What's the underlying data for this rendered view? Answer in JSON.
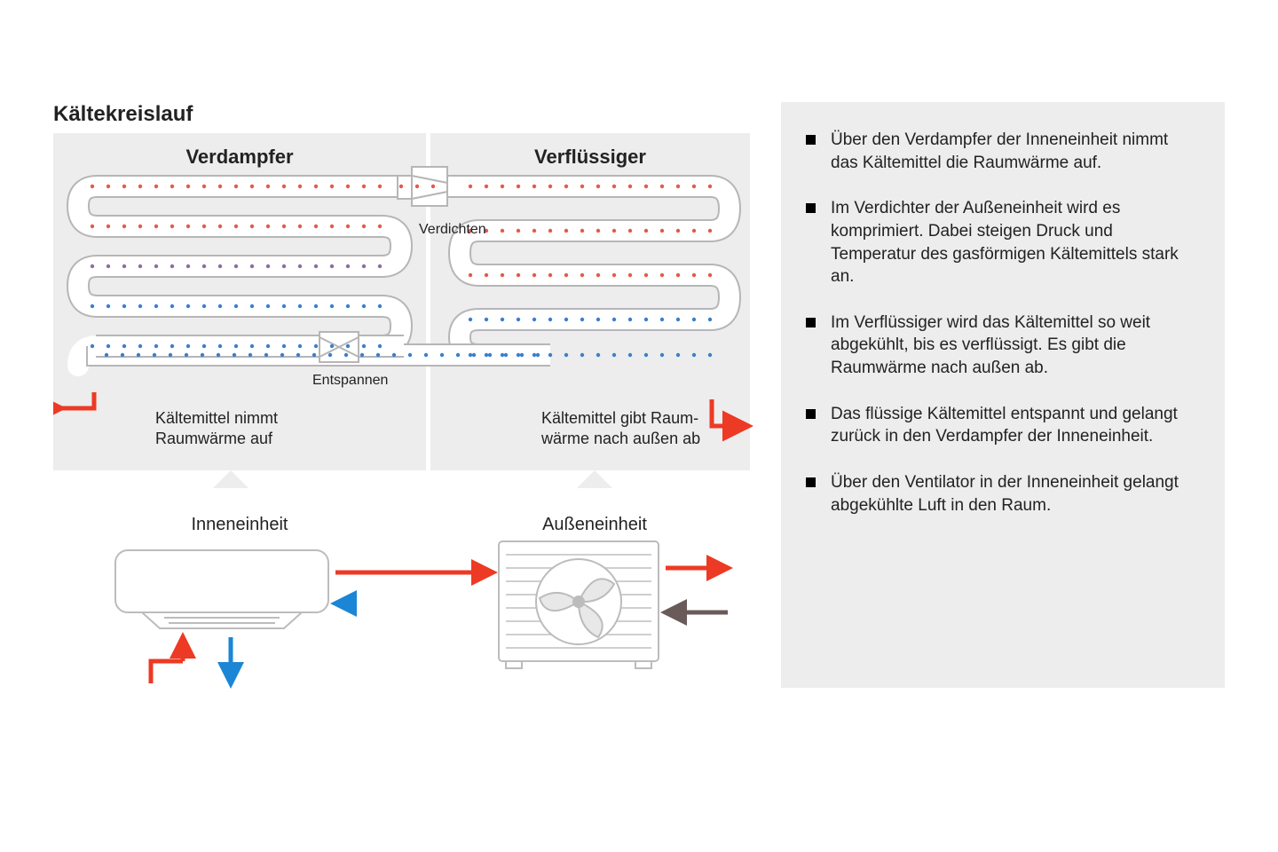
{
  "title": "Kältekreislauf",
  "panels": {
    "left": {
      "title": "Verdampfer",
      "caption": "Kältemittel nimmt\nRaumwärme auf"
    },
    "right": {
      "title": "Verflüssiger",
      "caption": "Kältemittel gibt Raum-\nwärme nach außen ab"
    }
  },
  "components": {
    "compress": "Verdichten",
    "expand": "Entspannen"
  },
  "units": {
    "indoor": "Inneneinheit",
    "outdoor": "Außeneinheit"
  },
  "bullets": [
    "Über den Verdampfer der Innen­einheit nimmt das Kältemittel die Raumwärme auf.",
    "Im Verdichter der Außeneinheit wird es komprimiert. Dabei steigen Druck und Temperatur des gasförmigen Kältemittels stark an.",
    "Im Verflüssiger wird das Kältemittel so weit abgekühlt, bis es verflüssigt. Es gibt die Raumwärme nach außen ab.",
    "Das flüssige Kältemittel entspannt und gelangt zurück in den Verdampfer der Inneneinheit.",
    "Über den Ventilator in der Inneneinheit gelangt abgekühlte Luft in den Raum."
  ],
  "colors": {
    "hot": "#ed3a24",
    "cold": "#1b86d6",
    "warm_return": "#6b5a5a",
    "pipe_stroke": "#b6b6b6",
    "pipe_fill": "#ffffff",
    "panel_bg": "#ededed",
    "unit_stroke": "#bcbcbc",
    "dot_red": "#e35a4a",
    "dot_blue": "#3a7fd0"
  },
  "diagram": {
    "type": "flowchart",
    "pipe_width": 24,
    "arrow_width": 5,
    "dot_spacing": 18,
    "dot_size": 2.2
  }
}
